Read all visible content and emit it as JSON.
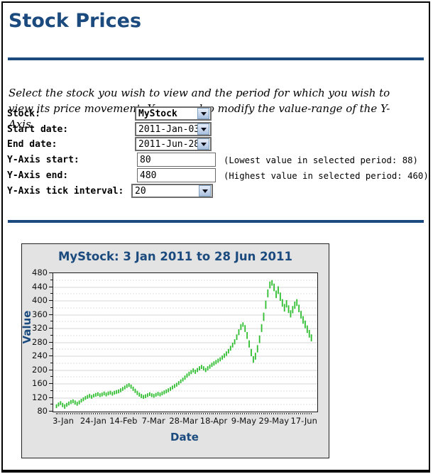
{
  "page": {
    "title": "Stock Prices",
    "intro": "Select the stock you wish to view and the period for which you wish to view its price movement. You can also modify the value-range of the Y-Axis."
  },
  "colors": {
    "accent_blue": "#1b4a7e",
    "series_green": "#2fbe2f",
    "panel_bg": "#e3e3e3",
    "grid_major": "#d6d6d6",
    "grid_minor": "#dddddd"
  },
  "form": {
    "stock": {
      "label": "Stock:",
      "value": "MyStock"
    },
    "start_date": {
      "label": "Start date:",
      "value": "2011-Jan-03"
    },
    "end_date": {
      "label": "End date:",
      "value": "2011-Jun-28"
    },
    "y_axis_start": {
      "label": "Y-Axis start:",
      "value": "80",
      "hint": "(Lowest value in selected period: 88)"
    },
    "y_axis_end": {
      "label": "Y-Axis end:",
      "value": "480",
      "hint": "(Highest value in selected period: 460)"
    },
    "y_axis_tick": {
      "label": "Y-Axis tick interval:",
      "value": "20"
    }
  },
  "chart_data": {
    "type": "bar",
    "subtype": "high-low daily price bars",
    "title": "MyStock: 3 Jan 2011 to 28 Jun 2011",
    "xlabel": "Date",
    "ylabel": "Value",
    "ylim": [
      80,
      480
    ],
    "y_label_step": 40,
    "y_minor_tick": 20,
    "grid": "horizontal, solid at 40s, dotted at 20s",
    "legend": "none",
    "x_tick_labels": [
      "3-Jan",
      "24-Jan",
      "14-Feb",
      "7-Mar",
      "28-Mar",
      "18-Apr",
      "9-May",
      "29-May",
      "17-Jun"
    ],
    "period_low": 88,
    "period_high": 460,
    "bars": [
      [
        90,
        101
      ],
      [
        95,
        106
      ],
      [
        99,
        110
      ],
      [
        93,
        105
      ],
      [
        88,
        101
      ],
      [
        94,
        105
      ],
      [
        98,
        109
      ],
      [
        102,
        113
      ],
      [
        104,
        115
      ],
      [
        100,
        112
      ],
      [
        97,
        108
      ],
      [
        101,
        112
      ],
      [
        106,
        117
      ],
      [
        110,
        121
      ],
      [
        114,
        125
      ],
      [
        117,
        128
      ],
      [
        120,
        131
      ],
      [
        117,
        128
      ],
      [
        121,
        131
      ],
      [
        123,
        134
      ],
      [
        125,
        136
      ],
      [
        122,
        133
      ],
      [
        124,
        135
      ],
      [
        127,
        138
      ],
      [
        124,
        135
      ],
      [
        127,
        138
      ],
      [
        129,
        140
      ],
      [
        126,
        137
      ],
      [
        129,
        140
      ],
      [
        131,
        142
      ],
      [
        133,
        144
      ],
      [
        136,
        147
      ],
      [
        140,
        151
      ],
      [
        144,
        155
      ],
      [
        148,
        159
      ],
      [
        151,
        162
      ],
      [
        146,
        158
      ],
      [
        140,
        152
      ],
      [
        134,
        146
      ],
      [
        128,
        140
      ],
      [
        123,
        135
      ],
      [
        119,
        131
      ],
      [
        117,
        128
      ],
      [
        119,
        130
      ],
      [
        122,
        133
      ],
      [
        125,
        136
      ],
      [
        122,
        133
      ],
      [
        120,
        131
      ],
      [
        123,
        134
      ],
      [
        126,
        137
      ],
      [
        124,
        135
      ],
      [
        127,
        138
      ],
      [
        130,
        141
      ],
      [
        133,
        144
      ],
      [
        136,
        147
      ],
      [
        140,
        151
      ],
      [
        144,
        155
      ],
      [
        148,
        159
      ],
      [
        152,
        163
      ],
      [
        157,
        168
      ],
      [
        162,
        173
      ],
      [
        167,
        178
      ],
      [
        172,
        184
      ],
      [
        178,
        190
      ],
      [
        183,
        195
      ],
      [
        188,
        200
      ],
      [
        193,
        205
      ],
      [
        189,
        201
      ],
      [
        194,
        206
      ],
      [
        199,
        211
      ],
      [
        203,
        215
      ],
      [
        199,
        211
      ],
      [
        194,
        206
      ],
      [
        199,
        211
      ],
      [
        204,
        216
      ],
      [
        209,
        221
      ],
      [
        213,
        225
      ],
      [
        217,
        229
      ],
      [
        221,
        233
      ],
      [
        225,
        237
      ],
      [
        230,
        242
      ],
      [
        235,
        248
      ],
      [
        241,
        254
      ],
      [
        248,
        261
      ],
      [
        256,
        270
      ],
      [
        265,
        279
      ],
      [
        274,
        289
      ],
      [
        287,
        303
      ],
      [
        301,
        318
      ],
      [
        316,
        333
      ],
      [
        325,
        338
      ],
      [
        310,
        330
      ],
      [
        290,
        310
      ],
      [
        265,
        286
      ],
      [
        240,
        261
      ],
      [
        221,
        240
      ],
      [
        230,
        250
      ],
      [
        251,
        272
      ],
      [
        278,
        300
      ],
      [
        310,
        333
      ],
      [
        342,
        366
      ],
      [
        377,
        401
      ],
      [
        410,
        433
      ],
      [
        436,
        456
      ],
      [
        444,
        460
      ],
      [
        428,
        450
      ],
      [
        408,
        430
      ],
      [
        420,
        442
      ],
      [
        400,
        424
      ],
      [
        383,
        405
      ],
      [
        369,
        391
      ],
      [
        381,
        402
      ],
      [
        365,
        387
      ],
      [
        352,
        373
      ],
      [
        364,
        385
      ],
      [
        377,
        398
      ],
      [
        385,
        405
      ],
      [
        367,
        389
      ],
      [
        349,
        371
      ],
      [
        334,
        356
      ],
      [
        321,
        343
      ],
      [
        307,
        329
      ],
      [
        294,
        316
      ],
      [
        283,
        303
      ]
    ]
  }
}
